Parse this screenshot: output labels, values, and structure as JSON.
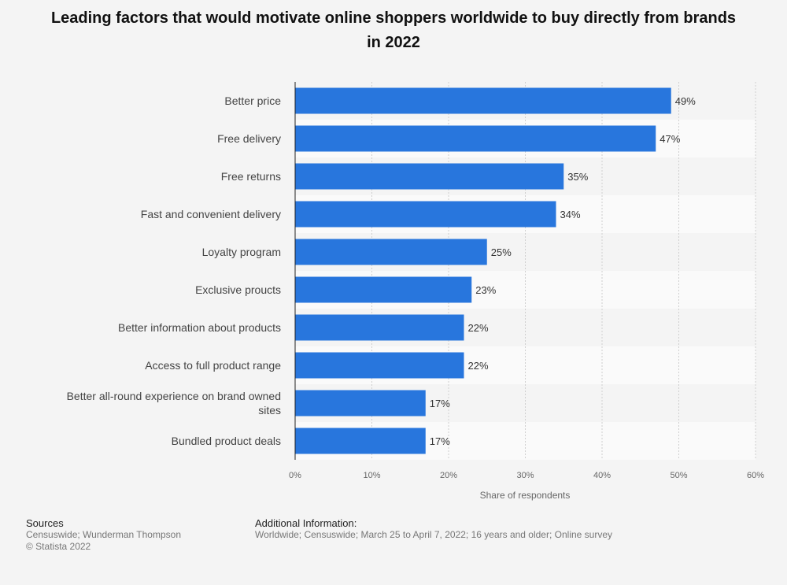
{
  "chart_data": {
    "type": "bar",
    "orientation": "horizontal",
    "title": "Leading factors that would motivate online shoppers worldwide to buy directly from brands in 2022",
    "categories": [
      [
        "Better price"
      ],
      [
        "Free delivery"
      ],
      [
        "Free returns"
      ],
      [
        "Fast and convenient delivery"
      ],
      [
        "Loyalty program"
      ],
      [
        "Exclusive proucts"
      ],
      [
        "Better information about products"
      ],
      [
        "Access to full product range"
      ],
      [
        "Better all-round experience on brand owned",
        "sites"
      ],
      [
        "Bundled product deals"
      ]
    ],
    "values": [
      49,
      47,
      35,
      34,
      25,
      23,
      22,
      22,
      17,
      17
    ],
    "value_labels": [
      "49%",
      "47%",
      "35%",
      "34%",
      "25%",
      "23%",
      "22%",
      "22%",
      "17%",
      "17%"
    ],
    "xlabel": "Share of respondents",
    "ylabel": "",
    "xlim": [
      0,
      60
    ],
    "ticks": [
      0,
      10,
      20,
      30,
      40,
      50,
      60
    ],
    "tick_labels": [
      "0%",
      "10%",
      "20%",
      "30%",
      "40%",
      "50%",
      "60%"
    ],
    "grid": true,
    "bar_color": "#2876dd"
  },
  "footer": {
    "sources_heading": "Sources",
    "sources_line1": "Censuswide; Wunderman Thompson",
    "sources_line2": "© Statista 2022",
    "additional_heading": "Additional Information:",
    "additional_text": "Worldwide; Censuswide; March 25 to April 7, 2022; 16 years and older; Online survey"
  }
}
